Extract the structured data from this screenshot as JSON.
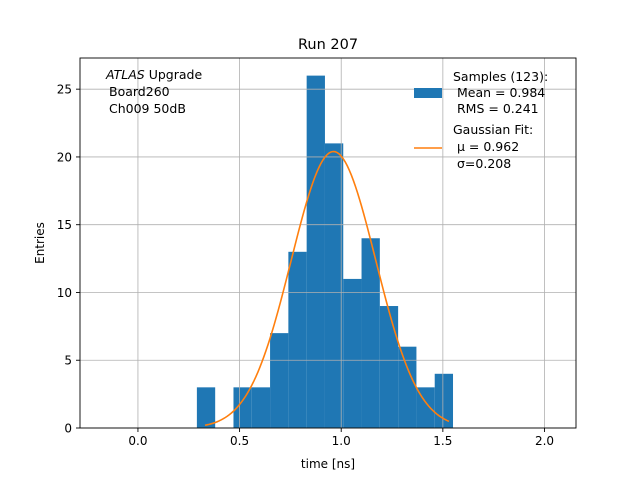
{
  "chart_data": {
    "type": "bar",
    "title": "Run 207",
    "xlabel": "time [ns]",
    "ylabel": "Entries",
    "xlim": [
      -0.285,
      2.155
    ],
    "ylim": [
      0,
      27.3
    ],
    "xticks": [
      0.0,
      0.5,
      1.0,
      1.5,
      2.0
    ],
    "xtick_labels": [
      "0.0",
      "0.5",
      "1.0",
      "1.5",
      "2.0"
    ],
    "yticks": [
      0,
      5,
      10,
      15,
      20,
      25
    ],
    "ytick_labels": [
      "0",
      "5",
      "10",
      "15",
      "20",
      "25"
    ],
    "grid": true,
    "annotation": {
      "italic": "ATLAS",
      "rest": " Upgrade",
      "line2": "Board260",
      "line3": "Ch009 50dB"
    },
    "histogram": {
      "name": "Samples (123):",
      "color": "#1f77b4",
      "bin_edges": [
        0.29,
        0.38,
        0.47,
        0.56,
        0.65,
        0.74,
        0.83,
        0.92,
        1.01,
        1.1,
        1.19,
        1.28,
        1.37,
        1.46,
        1.55
      ],
      "counts": [
        3,
        0,
        3,
        3,
        7,
        13,
        26,
        21,
        11,
        14,
        9,
        6,
        3,
        4
      ]
    },
    "fit": {
      "name": "Gaussian Fit:",
      "color": "#ff7f0e",
      "mu": 0.962,
      "sigma": 0.208,
      "peak": 20.4,
      "x_range": [
        0.33,
        1.53
      ]
    },
    "legend": {
      "position": "top-right",
      "samples_title": "Samples (123):",
      "samples_mean": "Mean = 0.984",
      "samples_rms": "RMS = 0.241",
      "fit_title": "Gaussian Fit:",
      "fit_mu": "μ = 0.962",
      "fit_sigma": "σ=0.208"
    }
  }
}
